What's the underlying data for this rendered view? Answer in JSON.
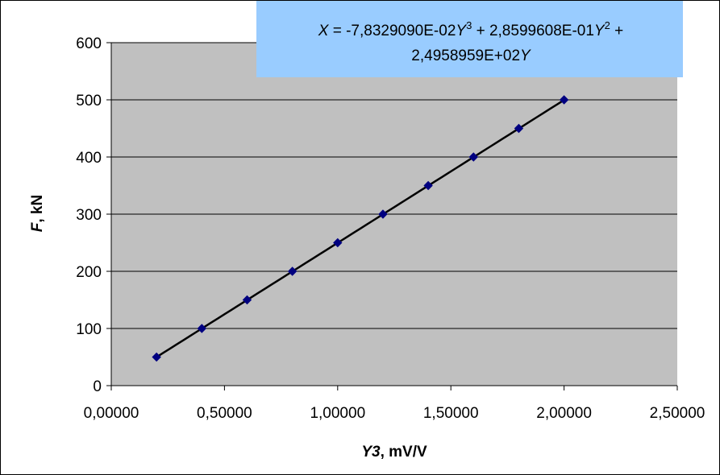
{
  "colors": {
    "plot_background": "#c0c0c0",
    "equation_box": "#99ccff",
    "marker": "#000080",
    "trendline": "#000000",
    "gridline": "#000000"
  },
  "equation": {
    "line1_var": "X",
    "line1_a": " = -7,8329090E-02",
    "line1_b": "Y",
    "line1_c": "3",
    "line1_d": " + 2,8599608E-01",
    "line1_e": "Y",
    "line1_f": "2",
    "line1_g": " +",
    "line2_a": "2,4958959E+02",
    "line2_b": "Y"
  },
  "chart_data": {
    "type": "scatter",
    "title": "",
    "xlabel_var": "Y3",
    "xlabel_unit": ", mV/V",
    "ylabel_var": "F",
    "ylabel_unit": ", kN",
    "xlim": [
      0,
      2.5
    ],
    "ylim": [
      0,
      600
    ],
    "x_ticks": [
      0,
      0.5,
      1.0,
      1.5,
      2.0,
      2.5
    ],
    "x_tick_labels": [
      "0,00000",
      "0,50000",
      "1,00000",
      "1,50000",
      "2,00000",
      "2,50000"
    ],
    "y_ticks": [
      0,
      100,
      200,
      300,
      400,
      500,
      600
    ],
    "y_tick_labels": [
      "0",
      "100",
      "200",
      "300",
      "400",
      "500",
      "600"
    ],
    "grid": "horizontal",
    "legend": "none",
    "series": [
      {
        "marker": "diamond",
        "x": [
          0.2,
          0.4,
          0.6,
          0.8,
          1.0,
          1.2,
          1.4,
          1.6,
          1.8,
          2.0
        ],
        "y": [
          50,
          100,
          150,
          200,
          250,
          300,
          350,
          400,
          450,
          500
        ]
      }
    ],
    "trendline": {
      "type": "polynomial",
      "order": 3,
      "coefficients": [
        -0.07832909,
        0.28599608,
        249.58959,
        0
      ]
    }
  }
}
